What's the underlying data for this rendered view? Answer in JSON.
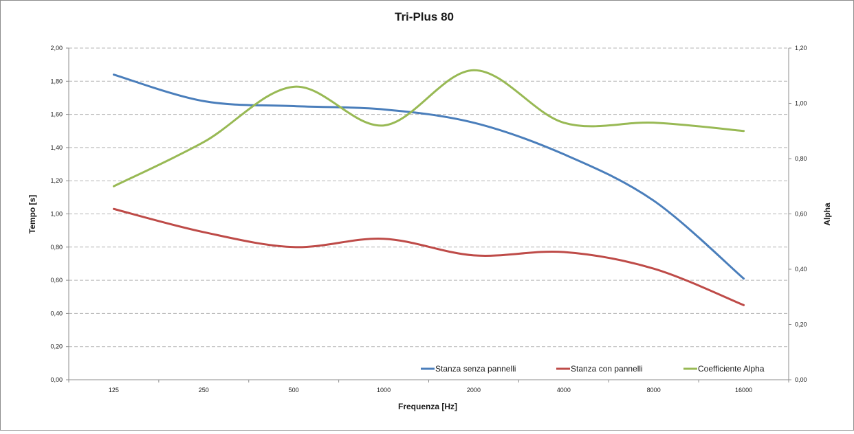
{
  "chart_data": {
    "type": "line",
    "title": "Tri-Plus 80",
    "xlabel": "Frequenza [Hz]",
    "ylabel": "Tempo [s]",
    "y2label": "Alpha",
    "categories": [
      "125",
      "250",
      "500",
      "1000",
      "2000",
      "4000",
      "8000",
      "16000"
    ],
    "ylim": [
      0,
      2.0
    ],
    "y2lim": [
      0,
      1.2
    ],
    "yticks": [
      "0,00",
      "0,20",
      "0,40",
      "0,60",
      "0,80",
      "1,00",
      "1,20",
      "1,40",
      "1,60",
      "1,80",
      "2,00"
    ],
    "y2ticks": [
      "0,00",
      "0,20",
      "0,40",
      "0,60",
      "0,80",
      "1,00",
      "1,20"
    ],
    "grid": true,
    "smooth": true,
    "legend_position": "bottom-right",
    "series": [
      {
        "name": "Stanza senza pannelli",
        "axis": "left",
        "color": "#4a7ebb",
        "values": [
          1.84,
          1.68,
          1.65,
          1.63,
          1.55,
          1.36,
          1.08,
          0.61
        ]
      },
      {
        "name": "Stanza con pannelli",
        "axis": "left",
        "color": "#be4b48",
        "values": [
          1.03,
          0.89,
          0.8,
          0.85,
          0.75,
          0.77,
          0.67,
          0.45
        ]
      },
      {
        "name": "Coefficiente Alpha",
        "axis": "right",
        "color": "#98b954",
        "values": [
          0.7,
          0.86,
          1.06,
          0.92,
          1.12,
          0.93,
          0.93,
          0.9
        ]
      }
    ]
  }
}
